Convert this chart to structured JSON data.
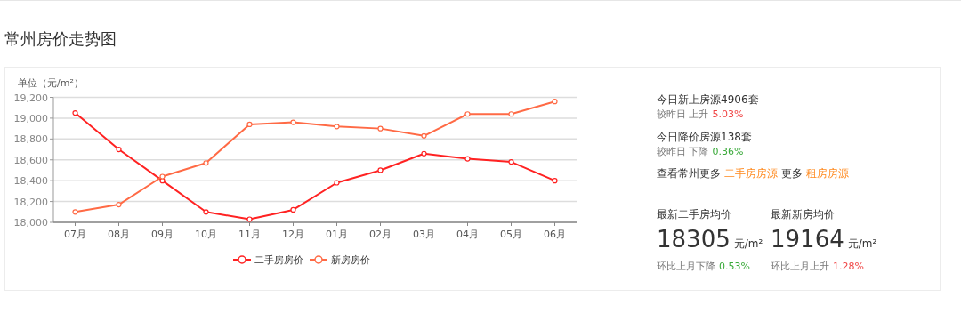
{
  "chart_data": [
    {
      "type": "line",
      "title": "常州房价走势图",
      "ylabel": "单位（元/m²）",
      "categories": [
        "07月",
        "08月",
        "09月",
        "10月",
        "11月",
        "12月",
        "01月",
        "02月",
        "03月",
        "04月",
        "05月",
        "06月"
      ],
      "ylim": [
        18000,
        19200
      ],
      "yticks": [
        {
          "value": 18000,
          "label": "18,000"
        },
        {
          "value": 18200,
          "label": "18,200"
        },
        {
          "value": 18400,
          "label": "18,400"
        },
        {
          "value": 18600,
          "label": "18,600"
        },
        {
          "value": 18800,
          "label": "18,800"
        },
        {
          "value": 19000,
          "label": "19,000"
        },
        {
          "value": 19200,
          "label": "19,200"
        }
      ],
      "grid": "y",
      "legend": "bottom",
      "marker": "circle",
      "line_style": "solid",
      "series": [
        {
          "name": "二手房房价",
          "color": "#ff2222",
          "values": [
            19050,
            18700,
            18400,
            18100,
            18030,
            18120,
            18380,
            18500,
            18660,
            18610,
            18580,
            18400
          ]
        },
        {
          "name": "新房房价",
          "color": "#ff6a45",
          "values": [
            18100,
            18170,
            18440,
            18570,
            18940,
            18960,
            18920,
            18900,
            18830,
            19040,
            19040,
            19160
          ]
        }
      ]
    },
    {
      "type": "other",
      "annotations": [
        "今日新上房源4906套",
        "较昨日 上升",
        "5.03%",
        "今日降价房源138套",
        "较昨日 下降",
        "0.36%",
        "查看常州更多",
        "二手房房源",
        "更多",
        "租房房源",
        "最新二手房均价",
        "18305",
        "元/m²",
        "环比上月下降",
        "0.53%",
        "最新新房均价",
        "19164",
        "元/m²",
        "环比上月上升",
        "1.28%"
      ],
      "colors": [
        "#333333",
        "#777777",
        "#f04646",
        "#333333",
        "#777777",
        "#3aaa3a",
        "#333333",
        "#ff8a1f",
        "#333333",
        "#ff8a1f",
        "#333333",
        "#333333",
        "#333333",
        "#777777",
        "#3aaa3a",
        "#333333",
        "#333333",
        "#333333",
        "#777777",
        "#f04646"
      ]
    }
  ]
}
